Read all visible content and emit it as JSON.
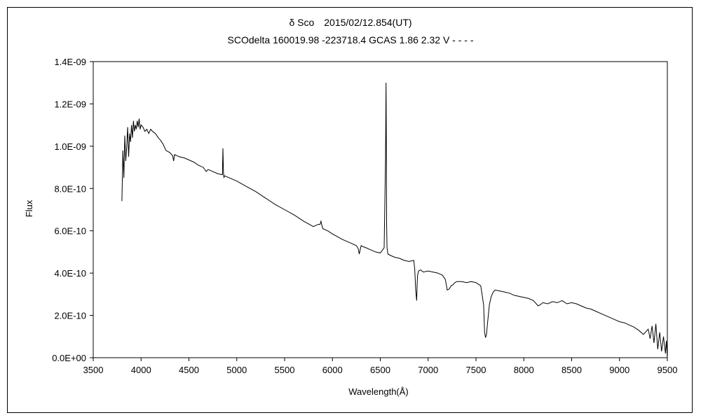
{
  "chart_data": {
    "type": "line",
    "title": "δ Sco　2015/02/12.854(UT)",
    "subtitle": "SCOdelta 160019.98 -223718.4 GCAS 1.86 2.32 V - - - -",
    "xlabel": "Wavelength(Å)",
    "ylabel": "Flux",
    "xlim": [
      3500,
      9500
    ],
    "ylim": [
      0,
      1.4e-09
    ],
    "x_ticks": [
      "3500",
      "4000",
      "4500",
      "5000",
      "5500",
      "6000",
      "6500",
      "7000",
      "7500",
      "8000",
      "8500",
      "9000",
      "9500"
    ],
    "y_ticks": [
      "0.0E+00",
      "2.0E-10",
      "4.0E-10",
      "6.0E-10",
      "8.0E-10",
      "1.0E-09",
      "1.2E-09",
      "1.4E-09"
    ],
    "grid": false,
    "legend": "none",
    "line_color": "#000000",
    "series": [
      {
        "x": [
          3800,
          3810,
          3820,
          3830,
          3840,
          3850,
          3860,
          3870,
          3880,
          3890,
          3900,
          3910,
          3920,
          3930,
          3940,
          3950,
          3960,
          3970,
          3980,
          3990,
          4000,
          4020,
          4040,
          4060,
          4080,
          4100,
          4120,
          4150,
          4180,
          4200,
          4230,
          4260,
          4300,
          4330,
          4340,
          4350,
          4400,
          4450,
          4500,
          4550,
          4600,
          4650,
          4680,
          4700,
          4750,
          4800,
          4850,
          4855,
          4861,
          4866,
          4870,
          4900,
          4950,
          5000,
          5100,
          5200,
          5300,
          5400,
          5500,
          5600,
          5700,
          5800,
          5850,
          5870,
          5880,
          5890,
          5900,
          5950,
          6000,
          6100,
          6200,
          6250,
          6270,
          6280,
          6290,
          6300,
          6320,
          6350,
          6400,
          6450,
          6500,
          6540,
          6555,
          6560,
          6563,
          6566,
          6570,
          6580,
          6600,
          6650,
          6700,
          6750,
          6800,
          6850,
          6860,
          6870,
          6880,
          6885,
          6890,
          6900,
          6920,
          6950,
          7000,
          7050,
          7100,
          7150,
          7180,
          7200,
          7220,
          7240,
          7260,
          7280,
          7300,
          7350,
          7400,
          7450,
          7500,
          7550,
          7580,
          7590,
          7600,
          7610,
          7620,
          7640,
          7660,
          7680,
          7700,
          7750,
          7800,
          7850,
          7900,
          7950,
          8000,
          8050,
          8100,
          8150,
          8170,
          8200,
          8250,
          8300,
          8350,
          8400,
          8450,
          8500,
          8550,
          8600,
          8650,
          8700,
          8750,
          8800,
          8850,
          8900,
          8950,
          9000,
          9050,
          9100,
          9150,
          9200,
          9250,
          9300,
          9320,
          9340,
          9360,
          9380,
          9400,
          9420,
          9440,
          9460,
          9480,
          9490,
          9500
        ],
        "y": [
          7.4e-10,
          9.8e-10,
          8.5e-10,
          1.05e-09,
          9.3e-10,
          1e-09,
          1.09e-09,
          9.5e-10,
          1.06e-09,
          1.02e-09,
          1.1e-09,
          1.04e-09,
          1.12e-09,
          1.07e-09,
          1.1e-09,
          1.08e-09,
          1.12e-09,
          1.09e-09,
          1.13e-09,
          1.08e-09,
          1.1e-09,
          1.09e-09,
          1.07e-09,
          1.08e-09,
          1.06e-09,
          1.08e-09,
          1.07e-09,
          1.06e-09,
          1.04e-09,
          1.03e-09,
          1.01e-09,
          9.8e-10,
          9.7e-10,
          9.55e-10,
          9.3e-10,
          9.6e-10,
          9.5e-10,
          9.45e-10,
          9.35e-10,
          9.25e-10,
          9.1e-10,
          9e-10,
          8.8e-10,
          8.9e-10,
          8.8e-10,
          8.7e-10,
          8.65e-10,
          9.9e-10,
          8.75e-10,
          8.5e-10,
          8.6e-10,
          8.55e-10,
          8.45e-10,
          8.35e-10,
          8.1e-10,
          7.85e-10,
          7.55e-10,
          7.25e-10,
          7e-10,
          6.75e-10,
          6.45e-10,
          6.2e-10,
          6.3e-10,
          6.3e-10,
          6.45e-10,
          6.25e-10,
          6.1e-10,
          6e-10,
          5.85e-10,
          5.6e-10,
          5.4e-10,
          5.3e-10,
          5.15e-10,
          4.9e-10,
          5.1e-10,
          5.3e-10,
          5.25e-10,
          5.2e-10,
          5.1e-10,
          5e-10,
          4.95e-10,
          5.2e-10,
          9.5e-10,
          1.3e-09,
          1.05e-09,
          6.4e-10,
          5.2e-10,
          4.9e-10,
          4.85e-10,
          4.75e-10,
          4.7e-10,
          4.6e-10,
          4.55e-10,
          4.6e-10,
          4.2e-10,
          3.2e-10,
          2.7e-10,
          3.5e-10,
          3.9e-10,
          4.1e-10,
          4.15e-10,
          4.05e-10,
          4.1e-10,
          4.05e-10,
          4e-10,
          3.9e-10,
          3.7e-10,
          3.2e-10,
          3.25e-10,
          3.4e-10,
          3.45e-10,
          3.55e-10,
          3.6e-10,
          3.6e-10,
          3.55e-10,
          3.6e-10,
          3.55e-10,
          3.4e-10,
          2.5e-10,
          1.2e-10,
          9.5e-11,
          1.1e-10,
          1.6e-10,
          2.5e-10,
          2.9e-10,
          3.1e-10,
          3.2e-10,
          3.15e-10,
          3.1e-10,
          3.05e-10,
          2.95e-10,
          2.9e-10,
          2.85e-10,
          2.8e-10,
          2.7e-10,
          2.45e-10,
          2.5e-10,
          2.6e-10,
          2.55e-10,
          2.65e-10,
          2.6e-10,
          2.7e-10,
          2.55e-10,
          2.6e-10,
          2.55e-10,
          2.45e-10,
          2.35e-10,
          2.3e-10,
          2.2e-10,
          2.1e-10,
          2e-10,
          1.9e-10,
          1.8e-10,
          1.7e-10,
          1.65e-10,
          1.55e-10,
          1.45e-10,
          1.3e-10,
          1.1e-10,
          1.35e-10,
          9e-11,
          1.5e-10,
          7e-11,
          1.6e-10,
          4e-11,
          1.2e-10,
          3e-11,
          1e-10,
          2e-11,
          8e-11,
          0.0
        ]
      }
    ]
  }
}
